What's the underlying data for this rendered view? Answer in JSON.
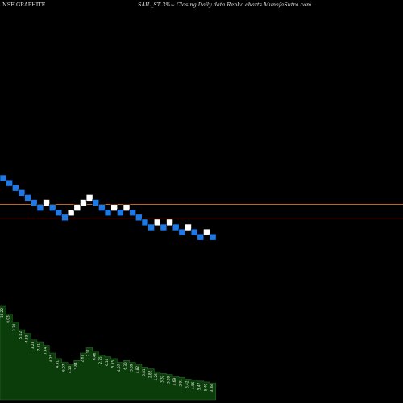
{
  "header": {
    "symbol": "NSE GRAPHITE",
    "title": "SAIL_ST 3%~  Closing Daily data  Renko  charts MunafaSutra.com"
  },
  "colors": {
    "background": "#000000",
    "brick_up": "#ffffff",
    "brick_down": "#1e78e6",
    "ref_line": "#c0661e",
    "volume_fill": "#0a3d0a",
    "volume_edge": "#2a6a2a"
  },
  "chart_data": {
    "type": "renko",
    "bricks": [
      {
        "col": 0,
        "row": 0,
        "dir": "down"
      },
      {
        "col": 1,
        "row": 1,
        "dir": "down"
      },
      {
        "col": 2,
        "row": 2,
        "dir": "down"
      },
      {
        "col": 3,
        "row": 3,
        "dir": "down"
      },
      {
        "col": 4,
        "row": 4,
        "dir": "down"
      },
      {
        "col": 5,
        "row": 5,
        "dir": "down"
      },
      {
        "col": 6,
        "row": 6,
        "dir": "down"
      },
      {
        "col": 7,
        "row": 5,
        "dir": "up"
      },
      {
        "col": 8,
        "row": 6,
        "dir": "down"
      },
      {
        "col": 9,
        "row": 7,
        "dir": "down"
      },
      {
        "col": 10,
        "row": 8,
        "dir": "down"
      },
      {
        "col": 11,
        "row": 7,
        "dir": "up"
      },
      {
        "col": 12,
        "row": 6,
        "dir": "up"
      },
      {
        "col": 13,
        "row": 5,
        "dir": "up"
      },
      {
        "col": 14,
        "row": 4,
        "dir": "up"
      },
      {
        "col": 15,
        "row": 5,
        "dir": "down"
      },
      {
        "col": 16,
        "row": 6,
        "dir": "down"
      },
      {
        "col": 17,
        "row": 7,
        "dir": "down"
      },
      {
        "col": 18,
        "row": 6,
        "dir": "up"
      },
      {
        "col": 19,
        "row": 7,
        "dir": "down"
      },
      {
        "col": 20,
        "row": 6,
        "dir": "up"
      },
      {
        "col": 21,
        "row": 7,
        "dir": "down"
      },
      {
        "col": 22,
        "row": 8,
        "dir": "down"
      },
      {
        "col": 23,
        "row": 9,
        "dir": "down"
      },
      {
        "col": 24,
        "row": 10,
        "dir": "down"
      },
      {
        "col": 25,
        "row": 9,
        "dir": "up"
      },
      {
        "col": 26,
        "row": 10,
        "dir": "down"
      },
      {
        "col": 27,
        "row": 9,
        "dir": "up"
      },
      {
        "col": 28,
        "row": 10,
        "dir": "down"
      },
      {
        "col": 29,
        "row": 11,
        "dir": "down"
      },
      {
        "col": 30,
        "row": 10,
        "dir": "up"
      },
      {
        "col": 31,
        "row": 11,
        "dir": "down"
      },
      {
        "col": 32,
        "row": 12,
        "dir": "down"
      },
      {
        "col": 33,
        "row": 11,
        "dir": "up"
      },
      {
        "col": 34,
        "row": 12,
        "dir": "down"
      }
    ],
    "reference_lines": [
      "upper",
      "lower"
    ],
    "volume": {
      "values": [
        100,
        92,
        83,
        75,
        71,
        64,
        62,
        58,
        50,
        44,
        40,
        38,
        42,
        50,
        56,
        52,
        48,
        46,
        44,
        40,
        42,
        40,
        38,
        35,
        33,
        30,
        28,
        27,
        25,
        24,
        22,
        21,
        20,
        19,
        18
      ],
      "labels": [
        "10.22",
        "6.03",
        "3.34",
        "5.02",
        "4.33",
        "3.28",
        "7.81",
        "7.44",
        "4.75",
        "4.91",
        "6.07",
        "4.16",
        "3.84",
        "2.61",
        "3.11",
        "6.46",
        "2.75",
        "6.10",
        "5.55",
        "4.07",
        "6.30",
        "3.89",
        "4.82",
        "6.81",
        "2.82",
        "5.26",
        "3.32",
        "3.39",
        "4.69",
        "2.91",
        "6.42",
        "4.55",
        "5.47",
        "5.40",
        "3.38"
      ]
    }
  }
}
